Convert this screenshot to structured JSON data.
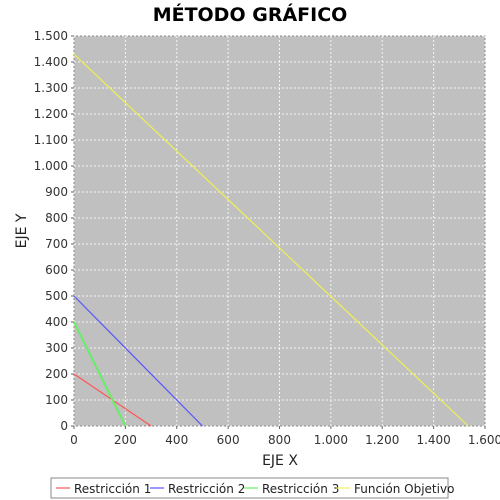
{
  "chart_data": {
    "type": "line",
    "title": "MÉTODO GRÁFICO",
    "xlabel": "EJE X",
    "ylabel": "EJE Y",
    "xlim": [
      0,
      1600
    ],
    "ylim": [
      0,
      1500
    ],
    "x_ticks": [
      0,
      200,
      400,
      600,
      800,
      1000,
      1200,
      1400,
      1600
    ],
    "x_tick_labels": [
      "0",
      "200",
      "400",
      "600",
      "800",
      "1.000",
      "1.200",
      "1.400",
      "1.600"
    ],
    "y_ticks": [
      0,
      100,
      200,
      300,
      400,
      500,
      600,
      700,
      800,
      900,
      1000,
      1100,
      1200,
      1300,
      1400,
      1500
    ],
    "y_tick_labels": [
      "0",
      "100",
      "200",
      "300",
      "400",
      "500",
      "600",
      "700",
      "800",
      "900",
      "1.000",
      "1.100",
      "1.200",
      "1.300",
      "1.400",
      "1.500"
    ],
    "grid": true,
    "legend_position": "bottom",
    "plot_background": "#c0c0c0",
    "series": [
      {
        "name": "Restricción 1",
        "color": "#ff5555",
        "points": [
          [
            0,
            200
          ],
          [
            300,
            0
          ]
        ]
      },
      {
        "name": "Restricción 2",
        "color": "#5555ff",
        "points": [
          [
            0,
            500
          ],
          [
            500,
            0
          ]
        ]
      },
      {
        "name": "Restricción 3",
        "color": "#66ee66",
        "points": [
          [
            0,
            400
          ],
          [
            200,
            0
          ]
        ]
      },
      {
        "name": "Función Objetivo",
        "color": "#eeee55",
        "points": [
          [
            0,
            1430
          ],
          [
            1535,
            0
          ]
        ]
      }
    ]
  }
}
